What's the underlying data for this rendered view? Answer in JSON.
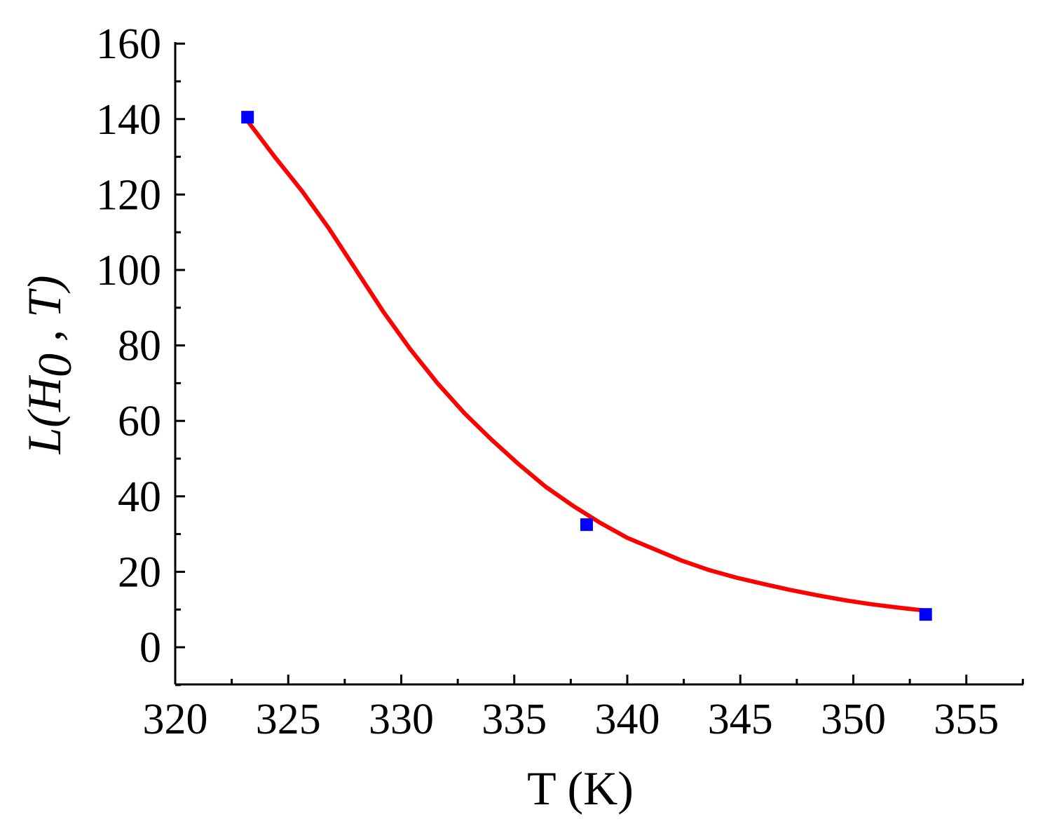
{
  "chart_data": {
    "type": "scatter",
    "title": "",
    "xlabel": "T (K)",
    "ylabel": {
      "prefix": "L(H",
      "subscript": "0",
      "suffix": " , T)"
    },
    "xlim": [
      320,
      357.5
    ],
    "ylim": [
      -10,
      160
    ],
    "xticks": [
      320,
      325,
      330,
      335,
      340,
      345,
      350,
      355
    ],
    "yticks": [
      0,
      20,
      40,
      60,
      80,
      100,
      120,
      140,
      160
    ],
    "x_minor_step": 2.5,
    "y_minor_step": 10,
    "grid": false,
    "legend": "none",
    "series": [
      {
        "kind": "markers",
        "marker": "square",
        "color": "#0000ff",
        "points": [
          {
            "x": 323.2,
            "y": 140.5
          },
          {
            "x": 338.2,
            "y": 32.5
          },
          {
            "x": 353.2,
            "y": 8.7
          }
        ]
      },
      {
        "kind": "fit-line",
        "color": "#ff0000",
        "points": [
          {
            "x": 323.2,
            "y": 139.5
          },
          {
            "x": 324.4,
            "y": 130.0
          },
          {
            "x": 325.6,
            "y": 121.0
          },
          {
            "x": 326.8,
            "y": 111.0
          },
          {
            "x": 328.0,
            "y": 100.0
          },
          {
            "x": 329.2,
            "y": 89.0
          },
          {
            "x": 330.4,
            "y": 79.0
          },
          {
            "x": 331.6,
            "y": 70.0
          },
          {
            "x": 332.8,
            "y": 62.0
          },
          {
            "x": 334.0,
            "y": 55.0
          },
          {
            "x": 335.2,
            "y": 48.5
          },
          {
            "x": 336.4,
            "y": 42.5
          },
          {
            "x": 337.6,
            "y": 37.5
          },
          {
            "x": 338.8,
            "y": 33.0
          },
          {
            "x": 340.0,
            "y": 29.0
          },
          {
            "x": 341.2,
            "y": 26.0
          },
          {
            "x": 342.4,
            "y": 23.0
          },
          {
            "x": 343.6,
            "y": 20.5
          },
          {
            "x": 344.8,
            "y": 18.5
          },
          {
            "x": 346.0,
            "y": 16.8
          },
          {
            "x": 347.2,
            "y": 15.2
          },
          {
            "x": 348.4,
            "y": 13.8
          },
          {
            "x": 349.6,
            "y": 12.5
          },
          {
            "x": 350.8,
            "y": 11.4
          },
          {
            "x": 352.0,
            "y": 10.5
          },
          {
            "x": 353.2,
            "y": 9.7
          }
        ]
      }
    ]
  }
}
